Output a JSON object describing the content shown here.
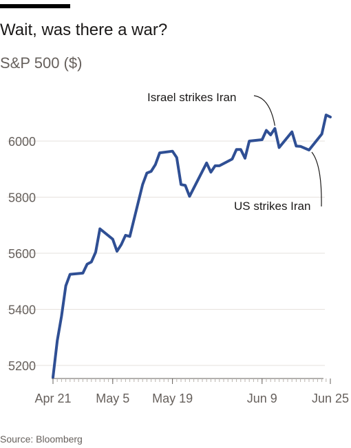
{
  "header": {
    "title": "Wait, was there a war?",
    "subtitle": "S&P 500 ($)"
  },
  "footer": {
    "source": "Source: Bloomberg"
  },
  "colors": {
    "line": "#2f4f94",
    "grid": "#e6e2dd",
    "axis": "#66605c",
    "text": "#1a1817"
  },
  "chart_data": {
    "type": "line",
    "title": "Wait, was there a war?",
    "ylabel": "S&P 500 ($)",
    "xlabel": "",
    "ylim": [
      5180,
      6180
    ],
    "yticks": [
      5200,
      5400,
      5600,
      5800,
      6000
    ],
    "xticks": [
      {
        "label": "Apr 21",
        "date": "2025-04-21"
      },
      {
        "label": "May 5",
        "date": "2025-05-05"
      },
      {
        "label": "May 19",
        "date": "2025-05-19"
      },
      {
        "label": "Jun 9",
        "date": "2025-06-09"
      },
      {
        "label": "Jun 25",
        "date": "2025-06-25"
      }
    ],
    "grid": "horizontal",
    "legend": "none",
    "series": [
      {
        "x": [
          "2025-04-21",
          "2025-04-22",
          "2025-04-23",
          "2025-04-24",
          "2025-04-25",
          "2025-04-28",
          "2025-04-29",
          "2025-04-30",
          "2025-05-01",
          "2025-05-02",
          "2025-05-05",
          "2025-05-06",
          "2025-05-07",
          "2025-05-08",
          "2025-05-09",
          "2025-05-12",
          "2025-05-13",
          "2025-05-14",
          "2025-05-15",
          "2025-05-16",
          "2025-05-19",
          "2025-05-20",
          "2025-05-21",
          "2025-05-22",
          "2025-05-23",
          "2025-05-27",
          "2025-05-28",
          "2025-05-29",
          "2025-05-30",
          "2025-06-02",
          "2025-06-03",
          "2025-06-04",
          "2025-06-05",
          "2025-06-06",
          "2025-06-09",
          "2025-06-10",
          "2025-06-11",
          "2025-06-12",
          "2025-06-13",
          "2025-06-16",
          "2025-06-17",
          "2025-06-18",
          "2025-06-20",
          "2025-06-23",
          "2025-06-24",
          "2025-06-25"
        ],
        "y": [
          5158,
          5288,
          5376,
          5484,
          5525,
          5529,
          5561,
          5569,
          5604,
          5687,
          5650,
          5607,
          5631,
          5664,
          5660,
          5845,
          5886,
          5892,
          5916,
          5958,
          5964,
          5941,
          5845,
          5842,
          5803,
          5922,
          5889,
          5912,
          5912,
          5936,
          5970,
          5970,
          5939,
          6000,
          6005,
          6038,
          6022,
          6045,
          5977,
          6033,
          5982,
          5981,
          5968,
          6025,
          6093,
          6086
        ]
      }
    ],
    "annotations": [
      {
        "text": "Israel strikes Iran",
        "date": "2025-06-12"
      },
      {
        "text": "US strikes Iran",
        "date": "2025-06-20"
      }
    ]
  }
}
